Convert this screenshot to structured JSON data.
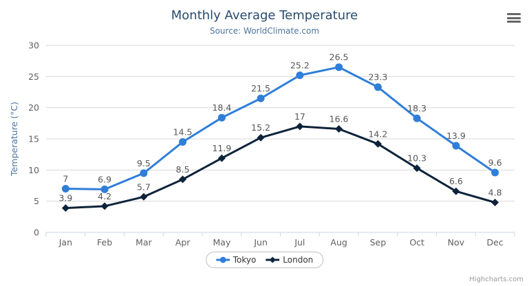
{
  "header": {
    "title": "Monthly Average Temperature",
    "subtitle": "Source: WorldClimate.com"
  },
  "credit": "Highcharts.com",
  "menu_icon": "hamburger-icon",
  "colors": {
    "title": "#274b6d",
    "subtitle": "#4d759e",
    "axis_title": "#4d759e",
    "tick_label": "#606060",
    "data_label": "#555555",
    "gridline": "#d8d8d8",
    "axis_line": "#ccd6eb",
    "tokyo": "#2f7ed8",
    "london": "#0d233a"
  },
  "chart_data": {
    "type": "line",
    "title": "Monthly Average Temperature",
    "subtitle": "Source: WorldClimate.com",
    "categories": [
      "Jan",
      "Feb",
      "Mar",
      "Apr",
      "May",
      "Jun",
      "Jul",
      "Aug",
      "Sep",
      "Oct",
      "Nov",
      "Dec"
    ],
    "series": [
      {
        "name": "Tokyo",
        "color": "#2f7ed8",
        "marker": "circle",
        "values": [
          7,
          6.9,
          9.5,
          14.5,
          18.4,
          21.5,
          25.2,
          26.5,
          23.3,
          18.3,
          13.9,
          9.6
        ]
      },
      {
        "name": "London",
        "color": "#0d233a",
        "marker": "diamond",
        "values": [
          3.9,
          4.2,
          5.7,
          8.5,
          11.9,
          15.2,
          17,
          16.6,
          14.2,
          10.3,
          6.6,
          4.8
        ]
      }
    ],
    "xlabel": "",
    "ylabel": "Temperature (°C)",
    "ylim": [
      0,
      30
    ],
    "ytick_interval": 5,
    "grid": true,
    "data_labels": true,
    "legend_position": "bottom"
  }
}
